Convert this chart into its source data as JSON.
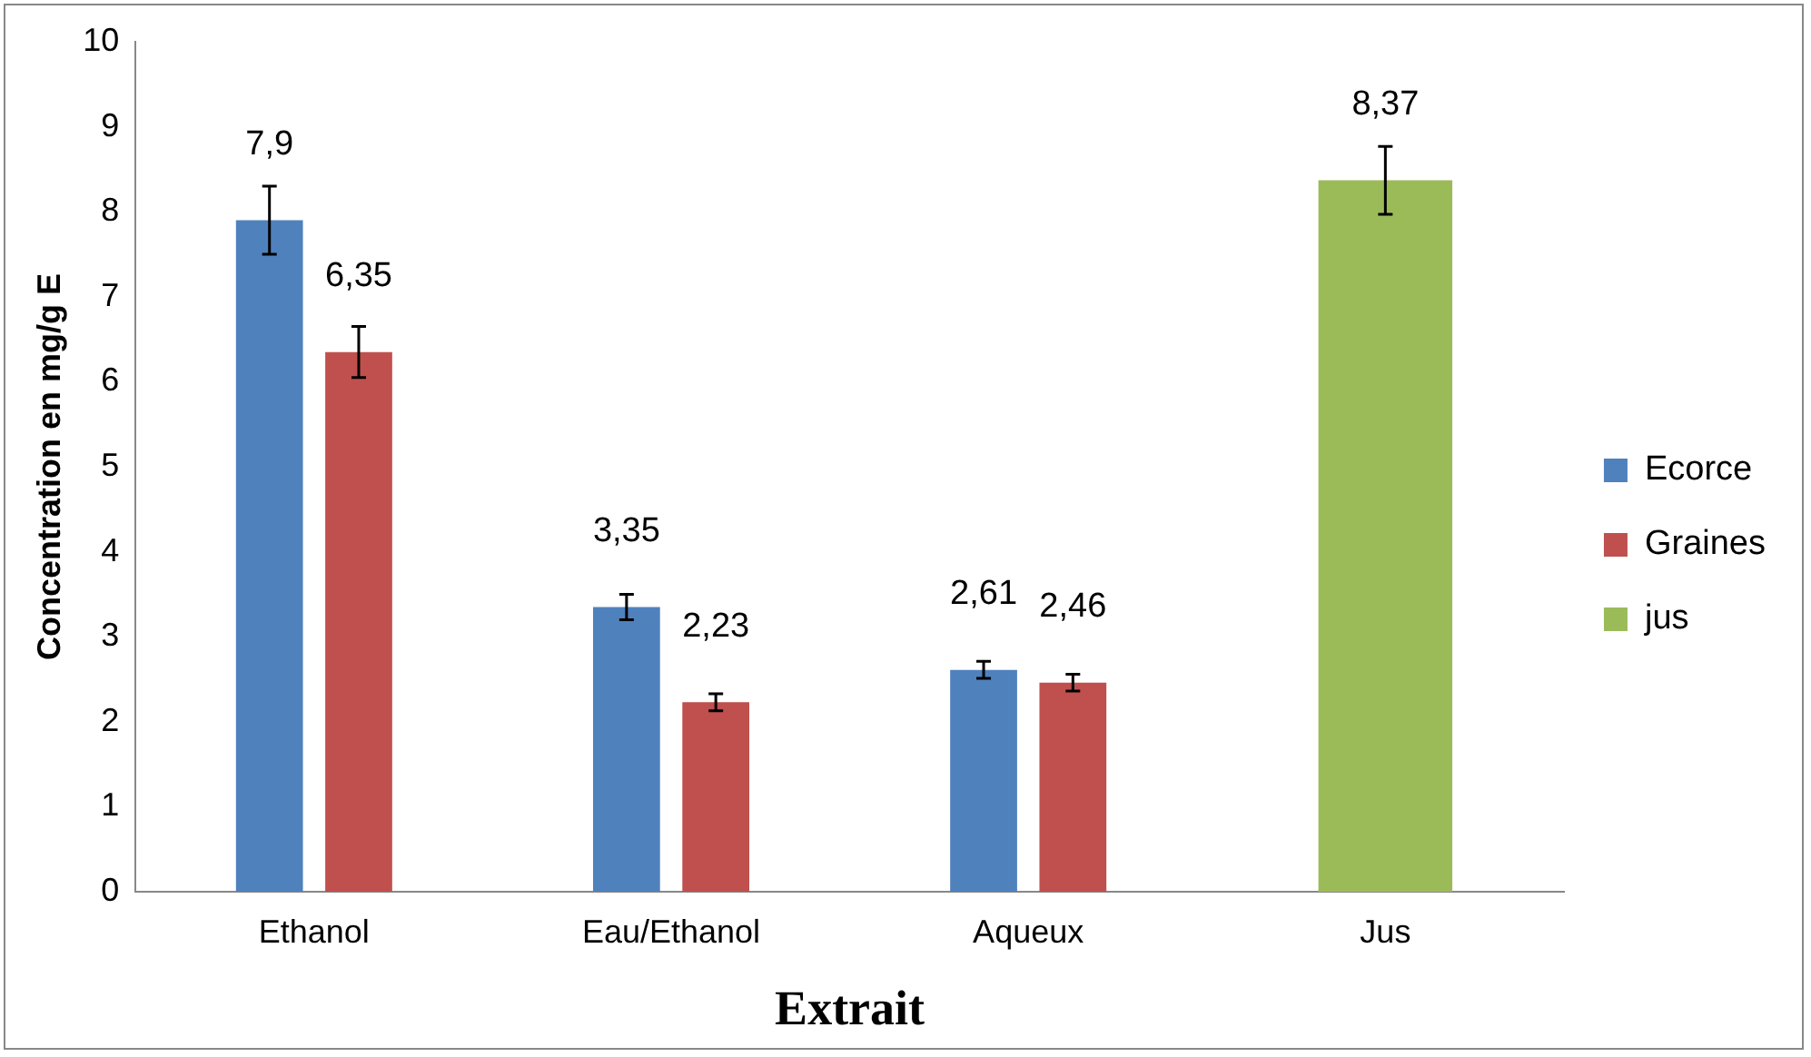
{
  "chart_data": {
    "type": "bar",
    "xlabel": "Extrait",
    "ylabel": "Concentration en mg/g E",
    "categories": [
      "Ethanol",
      "Eau/Ethanol",
      "Aqueux",
      "Jus"
    ],
    "series": [
      {
        "name": "Ecorce",
        "color": "#4f81bd",
        "values": [
          7.9,
          3.35,
          2.61,
          null
        ],
        "errors": [
          0.4,
          0.15,
          0.1,
          null
        ],
        "value_labels": [
          "7,9",
          "3,35",
          "2,61",
          null
        ]
      },
      {
        "name": "Graines",
        "color": "#c0504d",
        "values": [
          6.35,
          2.23,
          2.46,
          null
        ],
        "errors": [
          0.3,
          0.1,
          0.1,
          null
        ],
        "value_labels": [
          "6,35",
          "2,23",
          "2,46",
          null
        ]
      },
      {
        "name": "jus",
        "color": "#9bbb59",
        "values": [
          null,
          null,
          null,
          8.37
        ],
        "errors": [
          null,
          null,
          null,
          0.4
        ],
        "value_labels": [
          null,
          null,
          null,
          "8,37"
        ]
      }
    ],
    "ylim": [
      0,
      10
    ],
    "yticks": [
      0,
      1,
      2,
      3,
      4,
      5,
      6,
      7,
      8,
      9,
      10
    ],
    "grid": false,
    "legend": "right"
  }
}
